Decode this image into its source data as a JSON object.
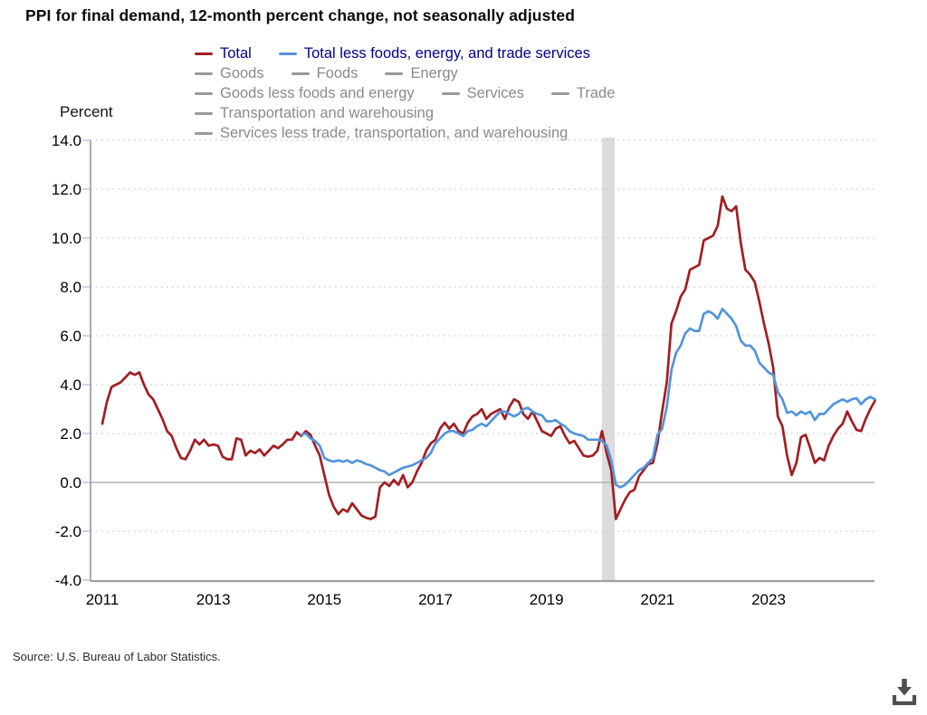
{
  "page": {
    "title": "PPI for final demand, 12-month percent change, not seasonally adjusted",
    "source": "Source: U.S. Bureau of Labor Statistics.",
    "download_label": "Download"
  },
  "colors": {
    "total_line": "#a11e22",
    "core_line": "#5494da",
    "active_legend_text": "#00008b",
    "inactive_legend_text": "#8a8a8a",
    "inactive_swatch": "#999999",
    "grid_dotted": "#c9c9c9",
    "zero_line": "#b2b2b2",
    "axis_line": "#9e9e9e",
    "axis_tick": "#b9c5e2",
    "recession_band": "#dcdcdc",
    "icon": "#4f4f4f"
  },
  "legend": {
    "rows": [
      [
        {
          "label": "Total",
          "color": "#a11e22",
          "active": true
        },
        {
          "label": "Total less foods, energy, and trade services",
          "color": "#5494da",
          "active": true
        }
      ],
      [
        {
          "label": "Goods"
        },
        {
          "label": "Foods"
        },
        {
          "label": "Energy"
        }
      ],
      [
        {
          "label": "Goods less foods and energy"
        },
        {
          "label": "Services"
        },
        {
          "label": "Trade"
        }
      ],
      [
        {
          "label": "Transportation and warehousing"
        }
      ],
      [
        {
          "label": "Services less trade, transportation, and warehousing"
        }
      ]
    ]
  },
  "chart_data": {
    "type": "line",
    "title": "PPI for final demand, 12-month percent change, not seasonally adjusted",
    "ylabel": "Percent",
    "ylim": [
      -4.0,
      14.0
    ],
    "y_tick_labels": [
      "14.0",
      "12.0",
      "10.0",
      "8.0",
      "6.0",
      "4.0",
      "2.0",
      "0.0",
      "-2.0",
      "-4.0"
    ],
    "x_tick_labels": [
      "2011",
      "2013",
      "2015",
      "2017",
      "2019",
      "2021",
      "2023"
    ],
    "x_unit": "month",
    "x_start": "2011-01",
    "x_end": "2024-12",
    "grid": "horizontal dotted, solid zero line",
    "legend_position": "top",
    "recession_band": {
      "start_month_index": 108,
      "end_month_index": 110.75,
      "color": "#dcdcdc"
    },
    "series": [
      {
        "name": "Total",
        "color": "#a11e22",
        "start_month_index": 0,
        "values": [
          2.4,
          3.3,
          3.9,
          4.0,
          4.1,
          4.3,
          4.5,
          4.4,
          4.5,
          4.0,
          3.6,
          3.4,
          3.0,
          2.6,
          2.1,
          1.9,
          1.4,
          1.0,
          0.95,
          1.3,
          1.75,
          1.55,
          1.75,
          1.5,
          1.55,
          1.5,
          1.05,
          0.95,
          0.95,
          1.8,
          1.75,
          1.1,
          1.3,
          1.2,
          1.35,
          1.1,
          1.3,
          1.5,
          1.4,
          1.55,
          1.75,
          1.75,
          2.05,
          1.9,
          2.1,
          1.95,
          1.5,
          1.1,
          0.3,
          -0.5,
          -1.0,
          -1.3,
          -1.1,
          -1.2,
          -0.85,
          -1.1,
          -1.35,
          -1.45,
          -1.5,
          -1.4,
          -0.2,
          0.0,
          -0.15,
          0.1,
          -0.1,
          0.3,
          -0.2,
          0.0,
          0.45,
          0.8,
          1.3,
          1.6,
          1.75,
          2.2,
          2.45,
          2.2,
          2.4,
          2.1,
          2.0,
          2.45,
          2.7,
          2.8,
          3.0,
          2.6,
          2.8,
          2.9,
          3.0,
          2.6,
          3.1,
          3.4,
          3.3,
          2.8,
          2.6,
          2.9,
          2.5,
          2.1,
          2.0,
          1.9,
          2.2,
          2.3,
          1.9,
          1.6,
          1.7,
          1.4,
          1.1,
          1.05,
          1.1,
          1.3,
          2.1,
          1.2,
          0.5,
          -1.5,
          -1.1,
          -0.7,
          -0.4,
          -0.3,
          0.25,
          0.5,
          0.75,
          0.8,
          1.6,
          2.9,
          4.1,
          6.5,
          7.0,
          7.6,
          7.9,
          8.7,
          8.8,
          8.9,
          9.9,
          10.0,
          10.1,
          10.5,
          11.7,
          11.2,
          11.1,
          11.3,
          9.8,
          8.7,
          8.5,
          8.2,
          7.4,
          6.5,
          5.7,
          4.7,
          2.7,
          2.3,
          1.1,
          0.3,
          0.8,
          1.85,
          1.95,
          1.4,
          0.8,
          1.0,
          0.9,
          1.5,
          1.9,
          2.2,
          2.4,
          2.9,
          2.5,
          2.15,
          2.1,
          2.6,
          3.0,
          3.35
        ]
      },
      {
        "name": "Total less foods, energy, and trade services",
        "color": "#5494da",
        "start_month_index": 43,
        "values": [
          1.95,
          2.0,
          1.8,
          1.7,
          1.5,
          1.0,
          0.9,
          0.85,
          0.9,
          0.85,
          0.9,
          0.8,
          0.9,
          0.85,
          0.75,
          0.7,
          0.6,
          0.5,
          0.45,
          0.3,
          0.4,
          0.5,
          0.6,
          0.65,
          0.7,
          0.8,
          0.9,
          1.0,
          1.2,
          1.6,
          1.8,
          2.0,
          2.1,
          2.1,
          2.0,
          1.9,
          2.1,
          2.15,
          2.3,
          2.4,
          2.3,
          2.5,
          2.7,
          2.9,
          2.9,
          2.8,
          2.7,
          2.8,
          3.0,
          3.05,
          2.9,
          2.8,
          2.75,
          2.5,
          2.5,
          2.55,
          2.4,
          2.3,
          2.1,
          2.0,
          1.95,
          1.9,
          1.75,
          1.75,
          1.75,
          1.7,
          1.5,
          0.9,
          -0.1,
          -0.2,
          -0.1,
          0.1,
          0.3,
          0.5,
          0.6,
          0.8,
          1.0,
          1.95,
          2.2,
          3.1,
          4.6,
          5.3,
          5.6,
          6.1,
          6.3,
          6.2,
          6.2,
          6.9,
          7.0,
          6.9,
          6.7,
          7.1,
          6.9,
          6.7,
          6.4,
          5.8,
          5.6,
          5.6,
          5.4,
          4.9,
          4.7,
          4.5,
          4.4,
          3.7,
          3.4,
          2.85,
          2.9,
          2.75,
          2.9,
          2.8,
          2.9,
          2.55,
          2.8,
          2.8,
          3.0,
          3.2,
          3.3,
          3.4,
          3.3,
          3.4,
          3.45,
          3.2,
          3.4,
          3.5,
          3.4
        ]
      }
    ],
    "inactive_series_names": [
      "Goods",
      "Foods",
      "Energy",
      "Goods less foods and energy",
      "Services",
      "Trade",
      "Transportation and warehousing",
      "Services less trade, transportation, and warehousing"
    ]
  }
}
